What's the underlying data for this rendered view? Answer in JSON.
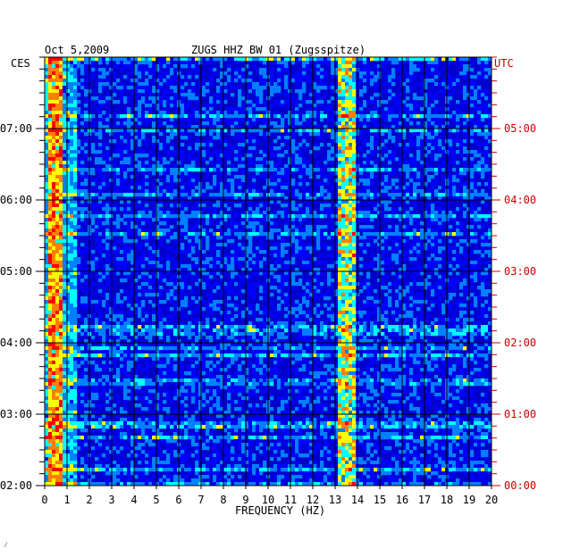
{
  "header": {
    "date": "Oct 5,2009",
    "station": "ZUGS HHZ BW 01 (Zugsspitze)"
  },
  "footer_mark": "⁄",
  "chart_data": {
    "type": "heatmap",
    "title": "ZUGS HHZ BW 01 (Zugsspitze)",
    "date": "Oct 5,2009",
    "xlabel": "FREQUENCY (HZ)",
    "xlim": [
      0,
      20
    ],
    "x_ticks": [
      0,
      1,
      2,
      3,
      4,
      5,
      6,
      7,
      8,
      9,
      10,
      11,
      12,
      13,
      14,
      15,
      16,
      17,
      18,
      19,
      20
    ],
    "left_axis": {
      "label": "CES",
      "ticks": [
        "02:00",
        "03:00",
        "04:00",
        "05:00",
        "06:00",
        "07:00"
      ],
      "color": "#000000"
    },
    "right_axis": {
      "label": "UTC",
      "ticks": [
        "00:00",
        "01:00",
        "02:00",
        "03:00",
        "04:00",
        "05:00"
      ],
      "color": "#cc0000"
    },
    "time_range_utc": [
      "00:00",
      "05:35"
    ],
    "colormap": [
      "#00008b",
      "#0000ff",
      "#0080ff",
      "#00ffff",
      "#ffff00",
      "#ff8000",
      "#ff0000"
    ],
    "grid": true,
    "features": [
      {
        "freq_hz": [
          0.1,
          0.8
        ],
        "note": "strong low-frequency energy"
      },
      {
        "freq_hz": [
          13.2,
          13.9
        ],
        "note": "persistent spectral band"
      }
    ]
  }
}
